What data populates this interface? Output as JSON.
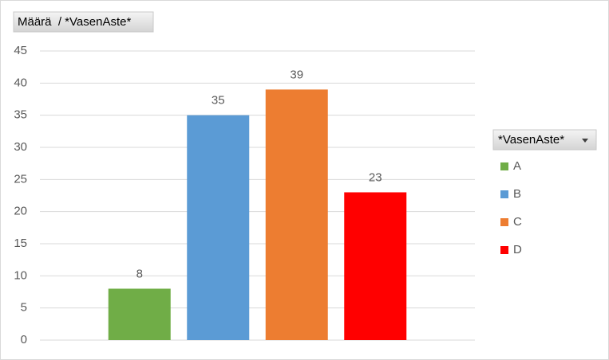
{
  "chart_data": {
    "type": "bar",
    "title": "Määrä  / *VasenAste*",
    "legend_title": "*VasenAste*",
    "categories": [
      null
    ],
    "series": [
      {
        "name": "A",
        "color": "#70ad47",
        "values": [
          8
        ]
      },
      {
        "name": "B",
        "color": "#5b9bd5",
        "values": [
          35
        ]
      },
      {
        "name": "C",
        "color": "#ed7d31",
        "values": [
          39
        ]
      },
      {
        "name": "D",
        "color": "#ff0000",
        "values": [
          23
        ]
      }
    ],
    "ylim": [
      0,
      45
    ],
    "yticks": [
      0,
      5,
      10,
      15,
      20,
      25,
      30,
      35,
      40,
      45
    ],
    "grid": true,
    "legend": "right"
  }
}
